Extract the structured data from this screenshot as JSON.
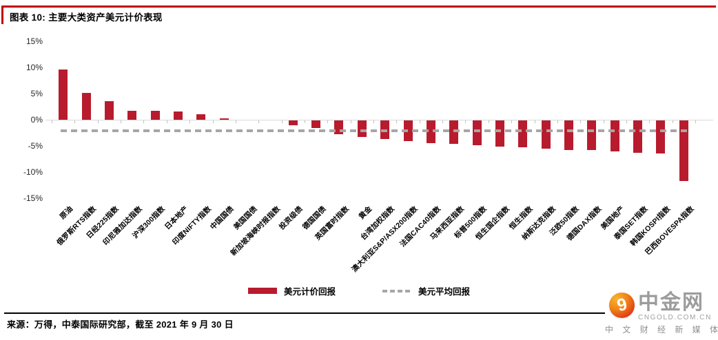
{
  "header": {
    "title": "图表 10: 主要大类资产美元计价表现"
  },
  "chart_data": {
    "type": "bar",
    "title": "主要大类资产美元计价表现",
    "categories": [
      "原油",
      "俄罗斯RTS指数",
      "日经225指数",
      "印尼雅加达指数",
      "沪深300指数",
      "日本地产",
      "印度NIFTY指数",
      "中国国债",
      "美国国债",
      "新加坡海峡时报指数",
      "投资级债",
      "德国国债",
      "英国富时指数",
      "黄金",
      "台湾加权指数",
      "澳大利亚S&P/ASX200指数",
      "法国CAC40指数",
      "马来西亚指数",
      "标普500指数",
      "恒生国企指数",
      "恒生指数",
      "纳斯达克指数",
      "泛欧50指数",
      "德国DAX指数",
      "美国地产",
      "泰国SET指数",
      "韩国KOSPI指数",
      "巴西BOVESPA指数"
    ],
    "values": [
      9.6,
      5.1,
      3.5,
      1.7,
      1.7,
      1.6,
      1.1,
      0.3,
      0.0,
      0.0,
      -0.9,
      -1.4,
      -2.6,
      -3.1,
      -3.5,
      -3.9,
      -4.3,
      -4.5,
      -4.7,
      -5.0,
      -5.1,
      -5.4,
      -5.6,
      -5.7,
      -5.9,
      -6.2,
      -6.3,
      -11.6
    ],
    "average_line_value": -2.1,
    "y_ticks": [
      15,
      10,
      5,
      0,
      -5,
      -10,
      -15
    ],
    "y_tick_labels": [
      "15%",
      "10%",
      "5%",
      "0%",
      "-5%",
      "-10%",
      "-15%"
    ],
    "ylim": [
      -15,
      15
    ],
    "grid": "off",
    "legend_position": "bottom",
    "bar_color": "#b81b2d",
    "average_line_color": "#a6a6a6"
  },
  "legend": {
    "bar_series_label": "美元计价回报",
    "average_series_label": "美元平均回报"
  },
  "footer": {
    "source_note": "来源：万得，中泰国际研究部，截至 2021 年 9 月 30 日"
  },
  "logo": {
    "icon": "cngold-swirl-9-icon",
    "name": "中金网",
    "domain": "CNGOLD.COM.CN",
    "tagline": "中 文 财 经 新 媒 体"
  }
}
